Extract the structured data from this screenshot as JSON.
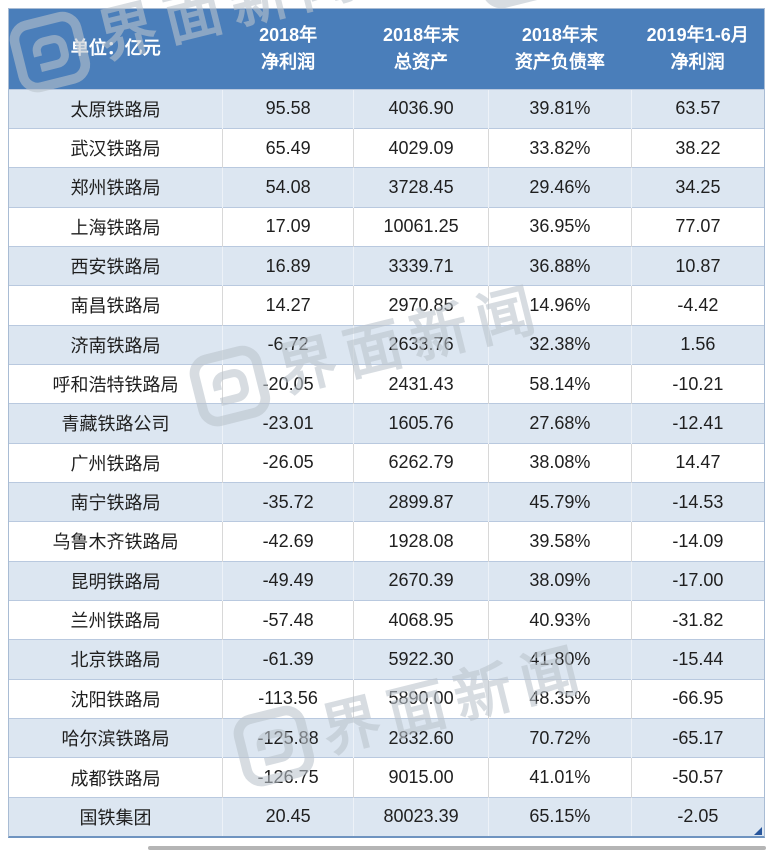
{
  "watermark": {
    "text": "界面新闻",
    "logo_icon": "jiemian-logo-icon"
  },
  "table": {
    "unit_label": "单位：亿元",
    "header_lines": [
      [
        "单位：亿元"
      ],
      [
        "2018年",
        "净利润"
      ],
      [
        "2018年末",
        "总资产"
      ],
      [
        "2018年末",
        "资产负债率"
      ],
      [
        "2019年1-6月",
        "净利润"
      ]
    ]
  },
  "chart_data": {
    "type": "table",
    "title": "铁路局财务数据（单位：亿元）",
    "columns": [
      "单位：亿元",
      "2018年净利润",
      "2018年末总资产",
      "2018年末资产负债率",
      "2019年1-6月净利润"
    ],
    "rows": [
      [
        "太原铁路局",
        95.58,
        4036.9,
        "39.81%",
        63.57
      ],
      [
        "武汉铁路局",
        65.49,
        4029.09,
        "33.82%",
        38.22
      ],
      [
        "郑州铁路局",
        54.08,
        3728.45,
        "29.46%",
        34.25
      ],
      [
        "上海铁路局",
        17.09,
        10061.25,
        "36.95%",
        77.07
      ],
      [
        "西安铁路局",
        16.89,
        3339.71,
        "36.88%",
        10.87
      ],
      [
        "南昌铁路局",
        14.27,
        2970.85,
        "14.96%",
        -4.42
      ],
      [
        "济南铁路局",
        -6.72,
        2633.76,
        "32.38%",
        1.56
      ],
      [
        "呼和浩特铁路局",
        -20.05,
        2431.43,
        "58.14%",
        -10.21
      ],
      [
        "青藏铁路公司",
        -23.01,
        1605.76,
        "27.68%",
        -12.41
      ],
      [
        "广州铁路局",
        -26.05,
        6262.79,
        "38.08%",
        14.47
      ],
      [
        "南宁铁路局",
        -35.72,
        2899.87,
        "45.79%",
        -14.53
      ],
      [
        "乌鲁木齐铁路局",
        -42.69,
        1928.08,
        "39.58%",
        -14.09
      ],
      [
        "昆明铁路局",
        -49.49,
        2670.39,
        "38.09%",
        -17.0
      ],
      [
        "兰州铁路局",
        -57.48,
        4068.95,
        "40.93%",
        -31.82
      ],
      [
        "北京铁路局",
        -61.39,
        5922.3,
        "41.80%",
        -15.44
      ],
      [
        "沈阳铁路局",
        -113.56,
        5890.0,
        "48.35%",
        -66.95
      ],
      [
        "哈尔滨铁路局",
        -125.88,
        2832.6,
        "70.72%",
        -65.17
      ],
      [
        "成都铁路局",
        -126.75,
        9015.0,
        "41.01%",
        -50.57
      ],
      [
        "国铁集团",
        20.45,
        80023.39,
        "65.15%",
        -2.05
      ]
    ],
    "colors": {
      "header_bg": "#4a7eba",
      "header_text": "#ffffff",
      "band_row_bg": "#dce6f1",
      "plain_row_bg": "#ffffff",
      "row_border": "#b9c9df",
      "cell_text": "#1f1f1f",
      "resize_handle": "#28569c",
      "scrollbar": "#a8a8a8"
    },
    "banding": "odd rows light blue, even rows white",
    "legend_position": "none",
    "grid": true
  }
}
